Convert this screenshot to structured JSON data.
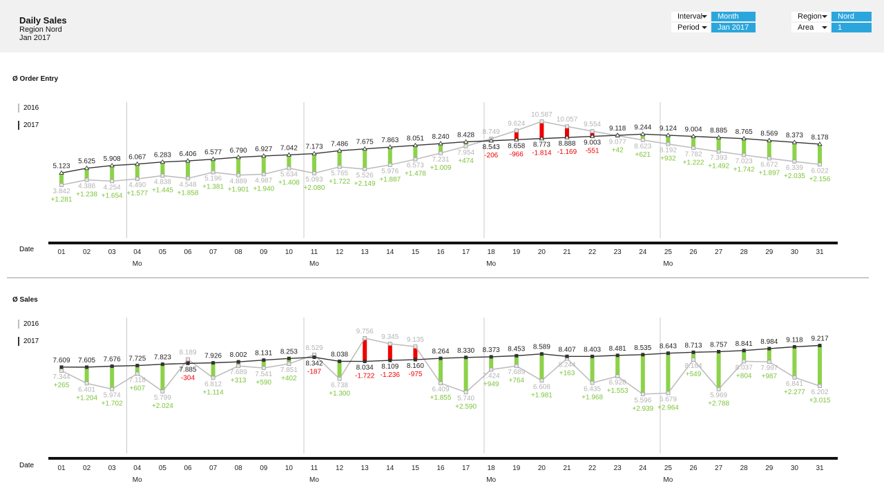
{
  "header": {
    "title": "Daily Sales",
    "subtitle_region": "Region Nord",
    "subtitle_period": "Jan 2017"
  },
  "filters": {
    "interval": {
      "label": "Interval",
      "value": "Month"
    },
    "period": {
      "label": "Period",
      "value": "Jan 2017"
    },
    "region": {
      "label": "Region",
      "value": "Nord"
    },
    "area": {
      "label": "Area",
      "value": "1"
    }
  },
  "colors": {
    "positive": "#8cd24a",
    "negative": "#f00000",
    "previous": "#bdbdbd",
    "current": "#333333",
    "accent": "#2ba6dc"
  },
  "chart_data": [
    {
      "type": "line",
      "title": "Ø Order Entry",
      "xlabel": "Date",
      "legend": [
        "2016",
        "2017"
      ],
      "legend_placement": "left",
      "categories": [
        "01",
        "02",
        "03",
        "04",
        "05",
        "06",
        "07",
        "08",
        "09",
        "10",
        "11",
        "12",
        "13",
        "14",
        "15",
        "16",
        "17",
        "18",
        "19",
        "20",
        "21",
        "22",
        "23",
        "24",
        "25",
        "26",
        "27",
        "28",
        "29",
        "30",
        "31"
      ],
      "weekday_labels": {
        "04": "Mo",
        "11": "Mo",
        "18": "Mo",
        "25": "Mo"
      },
      "series": [
        {
          "name": "2016",
          "values": [
            "3.842",
            "4.388",
            "4.254",
            "4.490",
            "4.838",
            "4.548",
            "5.196",
            "4.889",
            "4.987",
            "5.634",
            "5.093",
            "5.765",
            "5.526",
            "5.976",
            "6.573",
            "7.231",
            "7.954",
            "8.749",
            "9.624",
            "10.587",
            "10.057",
            "9.554",
            "9.077",
            "8.623",
            "8.192",
            "7.782",
            "7.393",
            "7.023",
            "6.672",
            "6.339",
            "6.022"
          ]
        },
        {
          "name": "2017",
          "values": [
            "5.123",
            "5.625",
            "5.908",
            "6.067",
            "6.283",
            "6.406",
            "6.577",
            "6.790",
            "6.927",
            "7.042",
            "7.173",
            "7.486",
            "7.675",
            "7.863",
            "8.051",
            "8.240",
            "8.428",
            "8.543",
            "8.658",
            "8.773",
            "8.888",
            "9.003",
            "9.118",
            "9.244",
            "9.124",
            "9.004",
            "8.885",
            "8.765",
            "8.569",
            "8.373",
            "8.178"
          ]
        }
      ],
      "deltas": [
        "+1.281",
        "+1.238",
        "+1.654",
        "+1.577",
        "+1.445",
        "+1.858",
        "+1.381",
        "+1.901",
        "+1.940",
        "+1.408",
        "+2.080",
        "+1.722",
        "+2.149",
        "+1.887",
        "+1.478",
        "+1.009",
        "+474",
        "-206",
        "-966",
        "-1.814",
        "-1.169",
        "-551",
        "+42",
        "+621",
        "+932",
        "+1.222",
        "+1.492",
        "+1.742",
        "+1.897",
        "+2.035",
        "+2.156"
      ]
    },
    {
      "type": "line",
      "title": "Ø Sales",
      "xlabel": "Date",
      "legend": [
        "2016",
        "2017"
      ],
      "legend_placement": "left",
      "categories": [
        "01",
        "02",
        "03",
        "04",
        "05",
        "06",
        "07",
        "08",
        "09",
        "10",
        "11",
        "12",
        "13",
        "14",
        "15",
        "16",
        "17",
        "18",
        "19",
        "20",
        "21",
        "22",
        "23",
        "24",
        "25",
        "26",
        "27",
        "28",
        "29",
        "30",
        "31"
      ],
      "weekday_labels": {
        "04": "Mo",
        "11": "Mo",
        "18": "Mo",
        "25": "Mo"
      },
      "series": [
        {
          "name": "2016",
          "values": [
            "7.344",
            "6.401",
            "5.974",
            "7.118",
            "5.799",
            "8.189",
            "6.812",
            "7.689",
            "7.541",
            "7.851",
            "8.529",
            "6.738",
            "9.756",
            "9.345",
            "9.135",
            "6.409",
            "5.740",
            "7.424",
            "7.689",
            "6.608",
            "8.244",
            "6.435",
            "6.928",
            "5.596",
            "5.679",
            "8.164",
            "5.969",
            "8.037",
            "7.997",
            "6.841",
            "6.202"
          ]
        },
        {
          "name": "2017",
          "values": [
            "7.609",
            "7.605",
            "7.676",
            "7.725",
            "7.823",
            "7.885",
            "7.926",
            "8.002",
            "8.131",
            "8.253",
            "8.342",
            "8.038",
            "8.034",
            "8.109",
            "8.160",
            "8.264",
            "8.330",
            "8.373",
            "8.453",
            "8.589",
            "8.407",
            "8.403",
            "8.481",
            "8.535",
            "8.643",
            "8.713",
            "8.757",
            "8.841",
            "8.984",
            "9.118",
            "9.217"
          ]
        }
      ],
      "deltas": [
        "+265",
        "+1.204",
        "+1.702",
        "+607",
        "+2.024",
        "-304",
        "+1.114",
        "+313",
        "+590",
        "+402",
        "-187",
        "+1.300",
        "-1.722",
        "-1.236",
        "-975",
        "+1.855",
        "+2.590",
        "+949",
        "+764",
        "+1.981",
        "+163",
        "+1.968",
        "+1.553",
        "+2.939",
        "+2.964",
        "+549",
        "+2.788",
        "+804",
        "+987",
        "+2.277",
        "+3.015"
      ]
    }
  ]
}
